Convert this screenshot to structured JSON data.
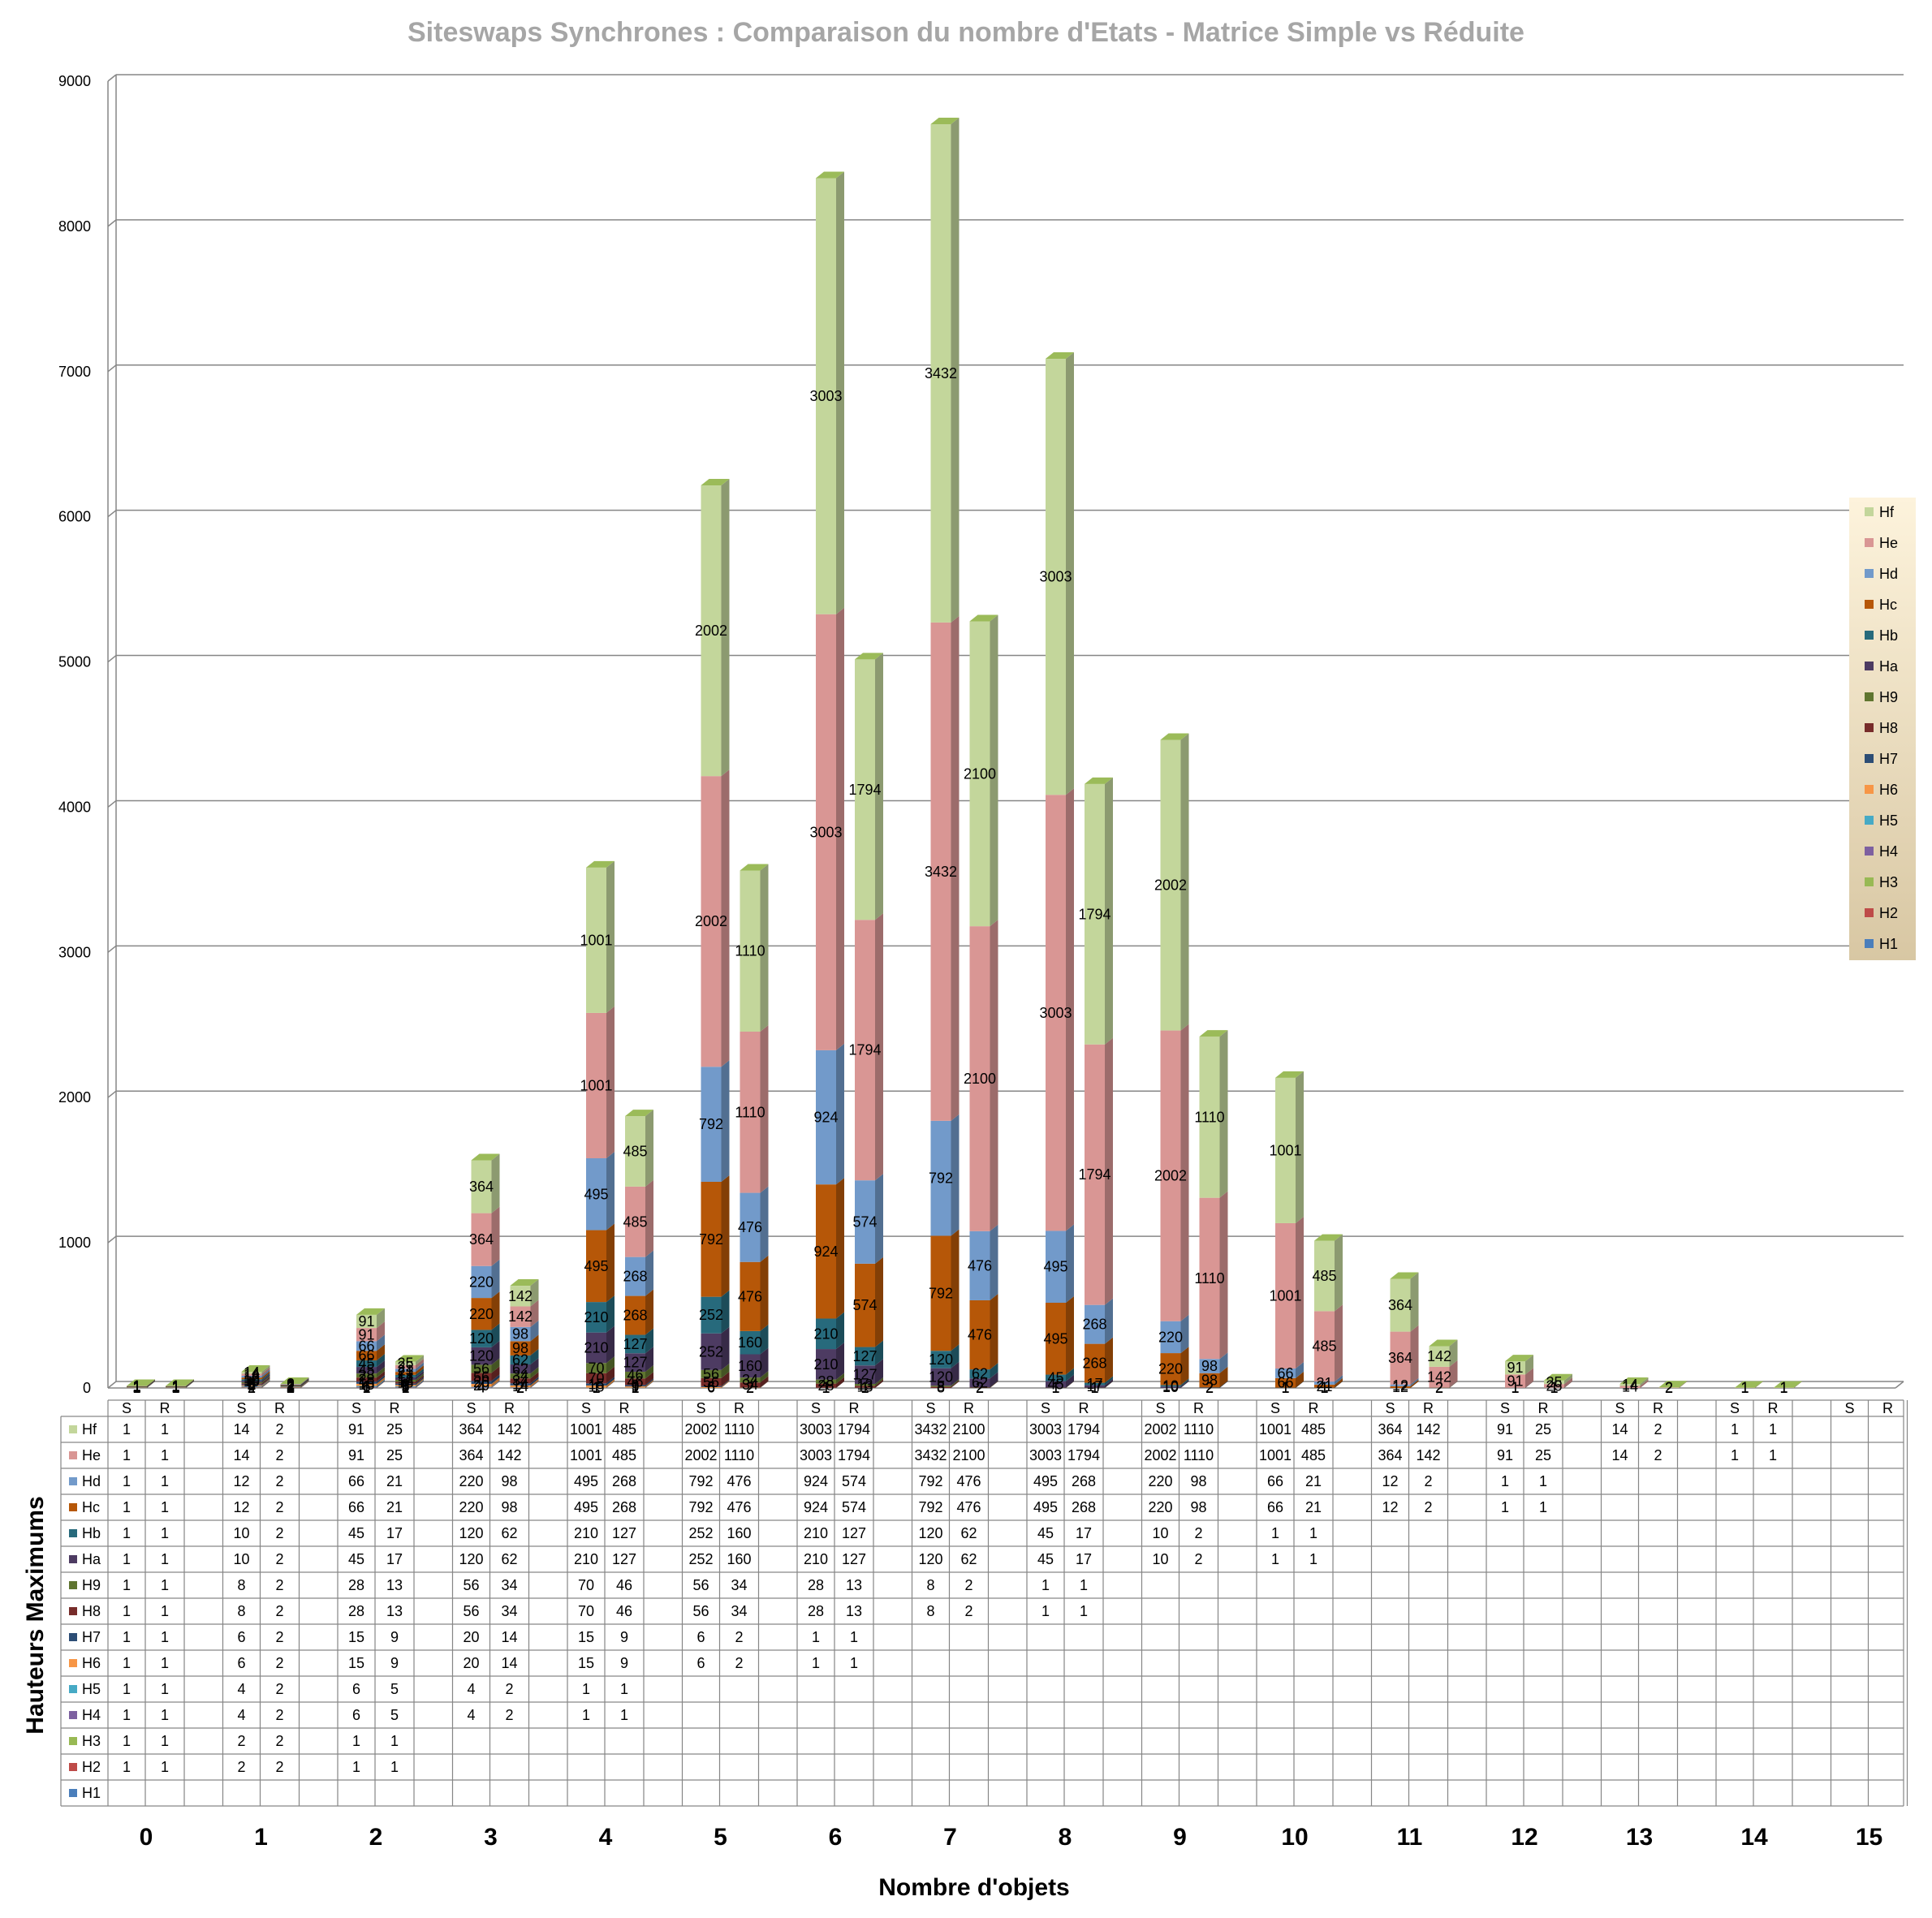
{
  "chart_data": {
    "type": "bar",
    "stacked": true,
    "title": "Siteswaps Synchrones : Comparaison du nombre d'Etats  -  Matrice Simple vs Réduite",
    "xlabel": "Nombre d'objets",
    "ylabel": "Hauteurs Maximums",
    "ylim": [
      0,
      9000
    ],
    "yticks": [
      "0",
      "1000",
      "2000",
      "3000",
      "4000",
      "5000",
      "6000",
      "7000",
      "8000",
      "9000"
    ],
    "grid": true,
    "legend_position": "right",
    "categories": [
      "0",
      "1",
      "2",
      "3",
      "4",
      "5",
      "6",
      "7",
      "8",
      "9",
      "10",
      "11",
      "12",
      "13",
      "14",
      "15"
    ],
    "subcategories": [
      "S",
      "R"
    ],
    "series": [
      {
        "name": "H1",
        "color": "#4a7ebb",
        "S": [
          null,
          null,
          null,
          null,
          null,
          null,
          null,
          null,
          null,
          null,
          null,
          null,
          null,
          null,
          null,
          null
        ],
        "R": [
          null,
          null,
          null,
          null,
          null,
          null,
          null,
          null,
          null,
          null,
          null,
          null,
          null,
          null,
          null,
          null
        ]
      },
      {
        "name": "H2",
        "color": "#be4b48",
        "S": [
          1,
          2,
          1,
          null,
          null,
          null,
          null,
          null,
          null,
          null,
          null,
          null,
          null,
          null,
          null,
          null
        ],
        "R": [
          1,
          2,
          1,
          null,
          null,
          null,
          null,
          null,
          null,
          null,
          null,
          null,
          null,
          null,
          null,
          null
        ]
      },
      {
        "name": "H3",
        "color": "#98b954",
        "S": [
          1,
          2,
          1,
          null,
          null,
          null,
          null,
          null,
          null,
          null,
          null,
          null,
          null,
          null,
          null,
          null
        ],
        "R": [
          1,
          2,
          1,
          null,
          null,
          null,
          null,
          null,
          null,
          null,
          null,
          null,
          null,
          null,
          null,
          null
        ]
      },
      {
        "name": "H4",
        "color": "#7d60a0",
        "S": [
          1,
          4,
          6,
          4,
          1,
          null,
          null,
          null,
          null,
          null,
          null,
          null,
          null,
          null,
          null,
          null
        ],
        "R": [
          1,
          2,
          5,
          2,
          1,
          null,
          null,
          null,
          null,
          null,
          null,
          null,
          null,
          null,
          null,
          null
        ]
      },
      {
        "name": "H5",
        "color": "#46aac5",
        "S": [
          1,
          4,
          6,
          4,
          1,
          null,
          null,
          null,
          null,
          null,
          null,
          null,
          null,
          null,
          null,
          null
        ],
        "R": [
          1,
          2,
          5,
          2,
          1,
          null,
          null,
          null,
          null,
          null,
          null,
          null,
          null,
          null,
          null,
          null
        ]
      },
      {
        "name": "H6",
        "color": "#f79646",
        "S": [
          1,
          6,
          15,
          20,
          15,
          6,
          1,
          null,
          null,
          null,
          null,
          null,
          null,
          null,
          null,
          null
        ],
        "R": [
          1,
          2,
          9,
          14,
          9,
          2,
          1,
          null,
          null,
          null,
          null,
          null,
          null,
          null,
          null,
          null
        ]
      },
      {
        "name": "H7",
        "color": "#2c4d75",
        "S": [
          1,
          6,
          15,
          20,
          15,
          6,
          1,
          null,
          null,
          null,
          null,
          null,
          null,
          null,
          null,
          null
        ],
        "R": [
          1,
          2,
          9,
          14,
          9,
          2,
          1,
          null,
          null,
          null,
          null,
          null,
          null,
          null,
          null,
          null
        ]
      },
      {
        "name": "H8",
        "color": "#772c2a",
        "S": [
          1,
          8,
          28,
          56,
          70,
          56,
          28,
          8,
          1,
          null,
          null,
          null,
          null,
          null,
          null,
          null
        ],
        "R": [
          1,
          2,
          13,
          34,
          46,
          34,
          13,
          2,
          1,
          null,
          null,
          null,
          null,
          null,
          null,
          null
        ]
      },
      {
        "name": "H9",
        "color": "#5f7530",
        "S": [
          1,
          8,
          28,
          56,
          70,
          56,
          28,
          8,
          1,
          null,
          null,
          null,
          null,
          null,
          null,
          null
        ],
        "R": [
          1,
          2,
          13,
          34,
          46,
          34,
          13,
          2,
          1,
          null,
          null,
          null,
          null,
          null,
          null,
          null
        ]
      },
      {
        "name": "Ha",
        "color": "#4d3b62",
        "S": [
          1,
          10,
          45,
          120,
          210,
          252,
          210,
          120,
          45,
          10,
          1,
          null,
          null,
          null,
          null,
          null
        ],
        "R": [
          1,
          2,
          17,
          62,
          127,
          160,
          127,
          62,
          17,
          2,
          1,
          null,
          null,
          null,
          null,
          null
        ]
      },
      {
        "name": "Hb",
        "color": "#276a7c",
        "S": [
          1,
          10,
          45,
          120,
          210,
          252,
          210,
          120,
          45,
          10,
          1,
          null,
          null,
          null,
          null,
          null
        ],
        "R": [
          1,
          2,
          17,
          62,
          127,
          160,
          127,
          62,
          17,
          2,
          1,
          null,
          null,
          null,
          null,
          null
        ]
      },
      {
        "name": "Hc",
        "color": "#b65708",
        "S": [
          1,
          12,
          66,
          220,
          495,
          792,
          924,
          792,
          495,
          220,
          66,
          12,
          1,
          null,
          null,
          null
        ],
        "R": [
          1,
          2,
          21,
          98,
          268,
          476,
          574,
          476,
          268,
          98,
          21,
          2,
          1,
          null,
          null,
          null
        ]
      },
      {
        "name": "Hd",
        "color": "#729aca",
        "S": [
          1,
          12,
          66,
          220,
          495,
          792,
          924,
          792,
          495,
          220,
          66,
          12,
          1,
          null,
          null,
          null
        ],
        "R": [
          1,
          2,
          21,
          98,
          268,
          476,
          574,
          476,
          268,
          98,
          21,
          2,
          1,
          null,
          null,
          null
        ]
      },
      {
        "name": "He",
        "color": "#d99694",
        "S": [
          1,
          14,
          91,
          364,
          1001,
          2002,
          3003,
          3432,
          3003,
          2002,
          1001,
          364,
          91,
          14,
          1,
          null
        ],
        "R": [
          1,
          2,
          25,
          142,
          485,
          1110,
          1794,
          2100,
          1794,
          1110,
          485,
          142,
          25,
          2,
          1,
          null
        ]
      },
      {
        "name": "Hf",
        "color": "#c3d69b",
        "S": [
          1,
          14,
          91,
          364,
          1001,
          2002,
          3003,
          3432,
          3003,
          2002,
          1001,
          364,
          91,
          14,
          1,
          null
        ],
        "R": [
          1,
          2,
          25,
          142,
          485,
          1110,
          1794,
          2100,
          1794,
          1110,
          485,
          142,
          25,
          2,
          1,
          null
        ]
      }
    ]
  }
}
